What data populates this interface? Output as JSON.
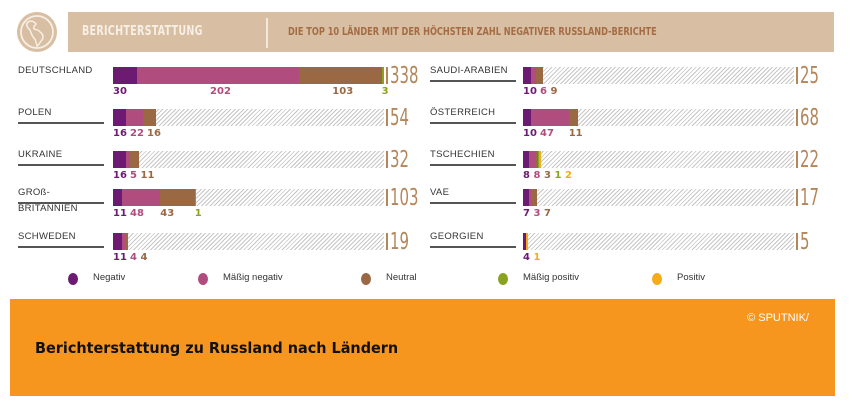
{
  "header": {
    "title": "BERICHTERSTATTUNG",
    "subtitle": "DIE TOP 10 LÄNDER MIT DER HÖCHSTEN ZAHL NEGATIVER RUSSLAND-BERICHTE",
    "logo_icon": "globe-americas-icon"
  },
  "colors": {
    "negativ": "#6d1a73",
    "maessig_negativ": "#b04c7e",
    "neutral": "#9a6843",
    "maessig_positiv": "#8aa31e",
    "positiv": "#f6ab1a",
    "header_band": "#d8bea2",
    "total": "#b4865a",
    "caption_bg": "#f7961f"
  },
  "chart_data": {
    "type": "bar",
    "orientation": "horizontal-stacked",
    "title": "DIE TOP 10 LÄNDER MIT DER HÖCHSTEN ZAHL NEGATIVER RUSSLAND-BERICHTE",
    "xmax": 338,
    "series_names": [
      "Negativ",
      "Mäßig negativ",
      "Neutral",
      "Mäßig positiv",
      "Positiv"
    ],
    "categories": [
      {
        "country": [
          "DEUTSCHLAND"
        ],
        "values": [
          30,
          202,
          103,
          3,
          0
        ],
        "labels": [
          "30",
          "202",
          "103",
          "3",
          ""
        ],
        "total": "338"
      },
      {
        "country": [
          "POLEN"
        ],
        "values": [
          16,
          22,
          16,
          0,
          0
        ],
        "labels": [
          "16",
          "22",
          "16",
          "",
          ""
        ],
        "total": "54"
      },
      {
        "country": [
          "UKRAINE"
        ],
        "values": [
          16,
          5,
          11,
          0,
          0
        ],
        "labels": [
          "16",
          "5",
          "11",
          "",
          ""
        ],
        "total": "32"
      },
      {
        "country": [
          "GROß-",
          "BRITANNIEN"
        ],
        "values": [
          11,
          48,
          43,
          1,
          0
        ],
        "labels": [
          "11",
          "48",
          "43",
          "1",
          ""
        ],
        "total": "103"
      },
      {
        "country": [
          "SCHWEDEN"
        ],
        "values": [
          11,
          4,
          4,
          0,
          0
        ],
        "labels": [
          "11",
          "4",
          "4",
          "",
          ""
        ],
        "total": "19"
      },
      {
        "country": [
          "SAUDI-ARABIEN"
        ],
        "values": [
          10,
          6,
          9,
          0,
          0
        ],
        "labels": [
          "10",
          "6",
          "9",
          "",
          ""
        ],
        "total": "25"
      },
      {
        "country": [
          "ÖSTERREICH"
        ],
        "values": [
          10,
          47,
          11,
          0,
          0
        ],
        "labels": [
          "10",
          "47",
          "11",
          "",
          ""
        ],
        "total": "68"
      },
      {
        "country": [
          "TSCHECHIEN"
        ],
        "values": [
          8,
          8,
          3,
          1,
          2
        ],
        "labels": [
          "8",
          "8",
          "3",
          "1",
          "2"
        ],
        "total": "22"
      },
      {
        "country": [
          "VAE"
        ],
        "values": [
          7,
          3,
          7,
          0,
          0
        ],
        "labels": [
          "7",
          "3",
          "7",
          "",
          ""
        ],
        "total": "17"
      },
      {
        "country": [
          "GEORGIEN"
        ],
        "values": [
          4,
          0,
          0,
          0,
          1
        ],
        "labels": [
          "4",
          "",
          "",
          "",
          "1"
        ],
        "total": "5"
      }
    ],
    "legend": [
      "Negativ",
      "Mäßig negativ",
      "Neutral",
      "Mäßig positiv",
      "Positiv"
    ],
    "legend_placement": "bottom"
  },
  "caption": {
    "copyright": "© SPUTNIK/",
    "title": "Berichterstattung zu Russland nach Ländern"
  }
}
